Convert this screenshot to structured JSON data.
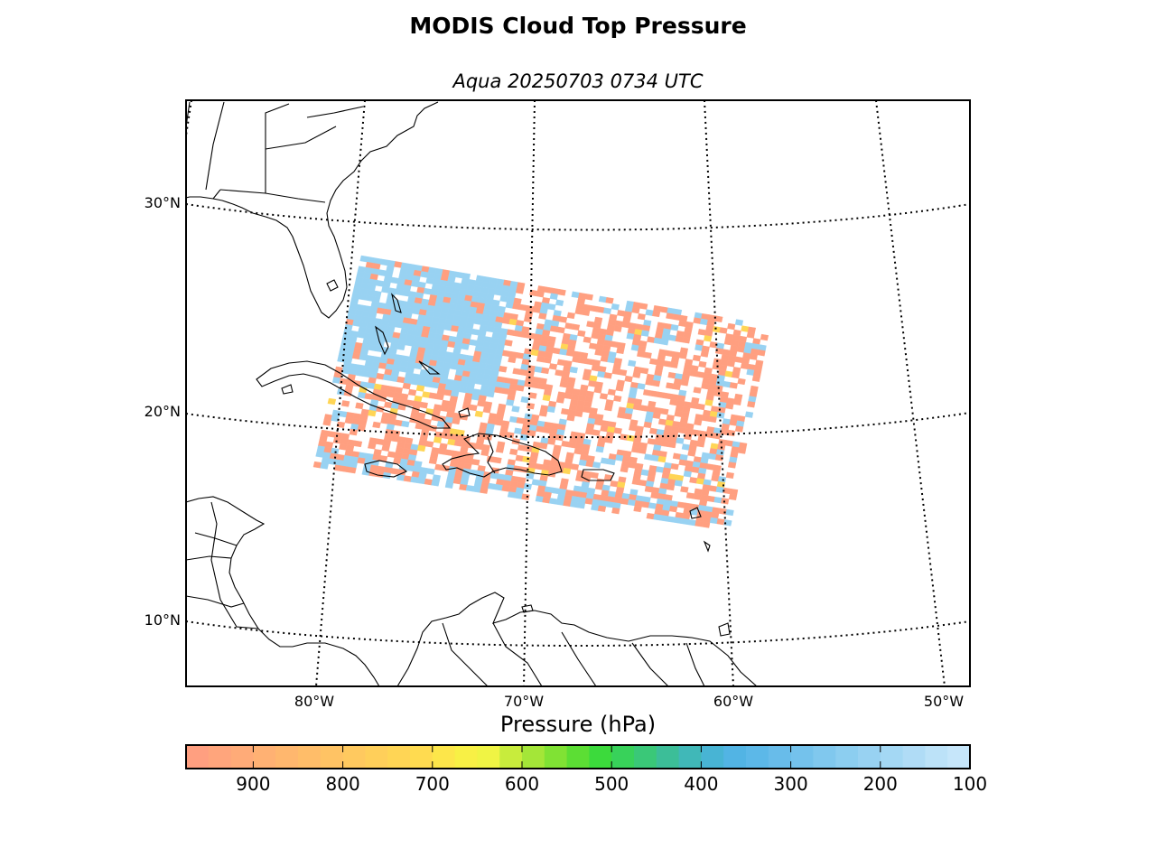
{
  "header": {
    "title": "MODIS Cloud Top Pressure",
    "subtitle": "Aqua 20250703 0734 UTC"
  },
  "map": {
    "projection": "lambert-conformal",
    "lat_labels": [
      "30°N",
      "20°N",
      "10°N"
    ],
    "lon_labels": [
      "80°W",
      "70°W",
      "60°W",
      "50°W"
    ],
    "gridline_style": "dotted",
    "coastline_color": "#000000"
  },
  "colorbar": {
    "title": "Pressure (hPa)",
    "tick_labels": [
      "900",
      "800",
      "700",
      "600",
      "500",
      "400",
      "300",
      "200",
      "100"
    ],
    "vmin": 975,
    "vmax": 100,
    "colors": [
      "#ff9f80",
      "#ffa57c",
      "#ffab78",
      "#ffb173",
      "#ffb76e",
      "#ffbd69",
      "#ffc364",
      "#ffc95f",
      "#ffcf5a",
      "#ffd555",
      "#ffdb50",
      "#fde64a",
      "#f8f045",
      "#f0f444",
      "#c8ec3c",
      "#a4e638",
      "#80e234",
      "#5cde34",
      "#3cda3c",
      "#38d25a",
      "#3ac878",
      "#3cbe98",
      "#40b8b8",
      "#48b4d4",
      "#52b4e4",
      "#5cb8e8",
      "#68bcea",
      "#74c2ec",
      "#80c8ee",
      "#8ccef0",
      "#98d2f2",
      "#a4d8f4",
      "#b0dcf6",
      "#bce2f8",
      "#c6e6fa"
    ]
  },
  "swath": {
    "dominant_colors": {
      "low_cloud": "#ff9f80",
      "high_cloud": "#98d2f2",
      "mid_cloud": "#ffd555",
      "clear": "#ffffff"
    }
  }
}
